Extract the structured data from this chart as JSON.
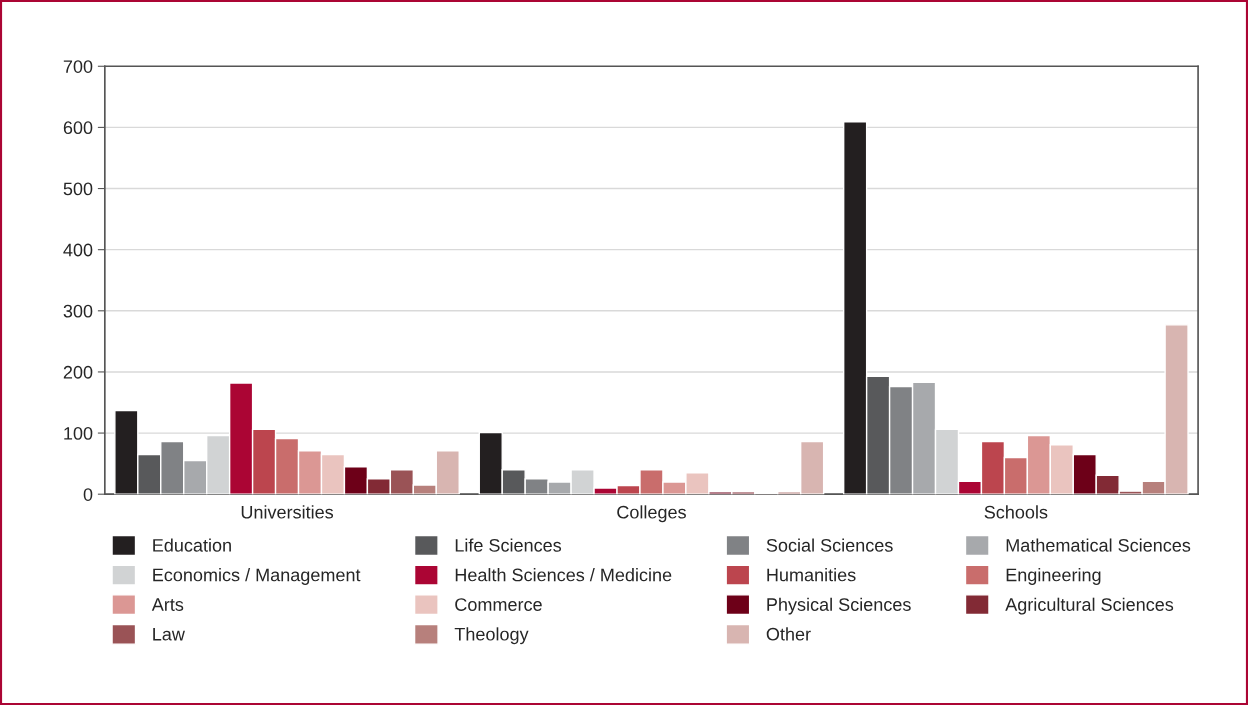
{
  "chart_data": {
    "type": "bar",
    "categories": [
      "Universities",
      "Colleges",
      "Schools"
    ],
    "series": [
      {
        "name": "Education",
        "color": "#231f20",
        "values": [
          137,
          101,
          609
        ]
      },
      {
        "name": "Life Sciences",
        "color": "#58595b",
        "values": [
          65,
          40,
          193
        ]
      },
      {
        "name": "Social Sciences",
        "color": "#808285",
        "values": [
          86,
          25,
          176
        ]
      },
      {
        "name": "Mathematical Sciences",
        "color": "#a7a9ac",
        "values": [
          55,
          20,
          183
        ]
      },
      {
        "name": "Economics / Management",
        "color": "#d1d3d4",
        "values": [
          96,
          40,
          106
        ]
      },
      {
        "name": "Health Sciences / Medicine",
        "color": "#ab0534",
        "values": [
          182,
          10,
          21
        ]
      },
      {
        "name": "Humanities",
        "color": "#bc454e",
        "values": [
          106,
          14,
          86
        ]
      },
      {
        "name": "Engineering",
        "color": "#c96d6c",
        "values": [
          91,
          40,
          60
        ]
      },
      {
        "name": "Arts",
        "color": "#db9794",
        "values": [
          71,
          20,
          96
        ]
      },
      {
        "name": "Commerce",
        "color": "#eac4bf",
        "values": [
          65,
          35,
          81
        ]
      },
      {
        "name": "Physical Sciences",
        "color": "#6d0018",
        "values": [
          45,
          4,
          65
        ]
      },
      {
        "name": "Agricultural Sciences",
        "color": "#822a35",
        "values": [
          25,
          4,
          31
        ]
      },
      {
        "name": "Law",
        "color": "#9a5356",
        "values": [
          40,
          1,
          5
        ]
      },
      {
        "name": "Theology",
        "color": "#b7807c",
        "values": [
          15,
          4,
          21
        ]
      },
      {
        "name": "Other",
        "color": "#d8b5b1",
        "values": [
          71,
          86,
          277
        ]
      }
    ],
    "ylim": [
      0,
      700
    ],
    "yticks": [
      0,
      100,
      200,
      300,
      400,
      500,
      600,
      700
    ],
    "grid": "y",
    "legend": "bottom"
  }
}
